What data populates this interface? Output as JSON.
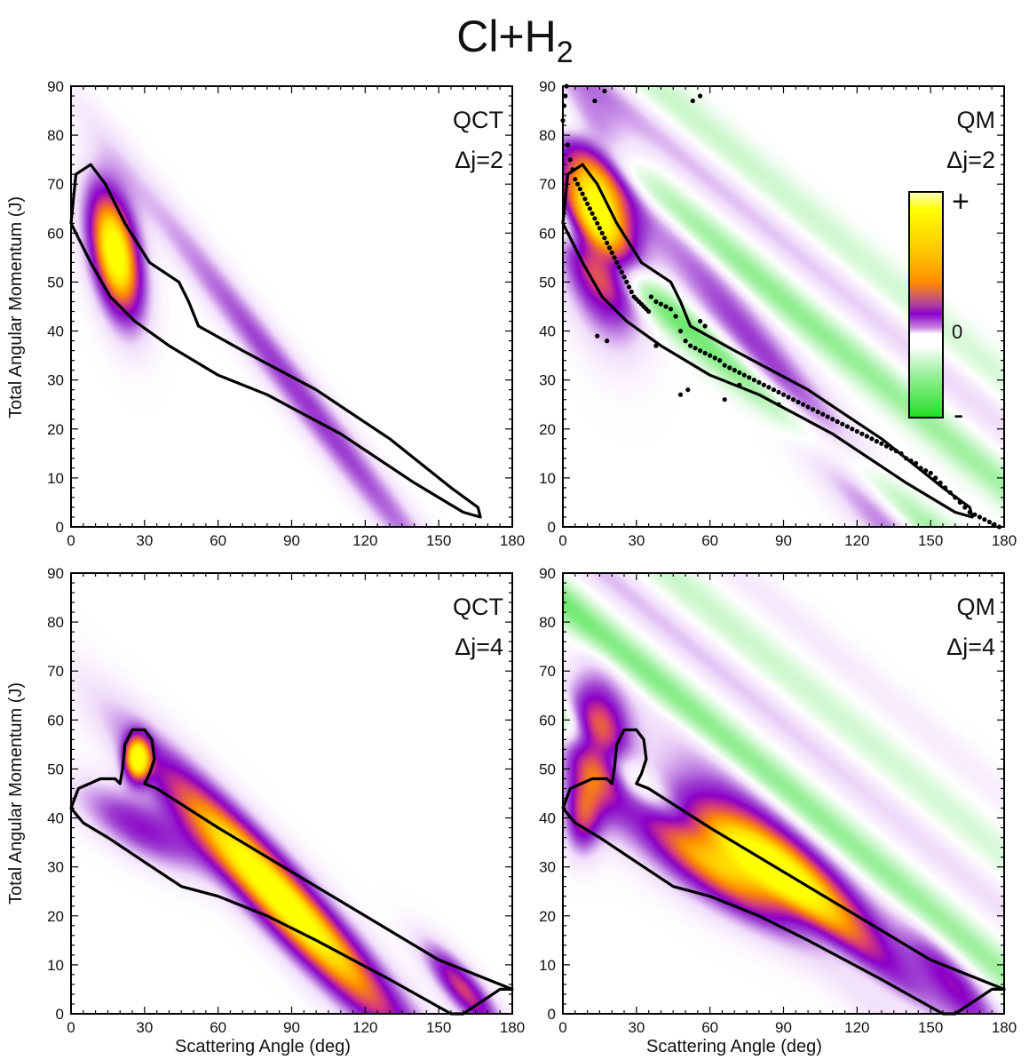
{
  "figure": {
    "title_main": "Cl+H",
    "title_sub": "2",
    "ylabel": "Total Angular Momentum (J)",
    "xlabel": "Scattering Angle (deg)"
  },
  "colors": {
    "yellow": "#ffff00",
    "orange": "#ff8c00",
    "purple": "#8b00c8",
    "green": "#22dd22",
    "contour": "#000000"
  },
  "colorbar": {
    "plus": "+",
    "zero": "0",
    "minus": "-"
  },
  "chart_data": [
    {
      "type": "heatmap",
      "panel": "top-left",
      "method": "QCT",
      "delta_j": "Δj=2",
      "xlim": [
        0,
        180
      ],
      "ylim": [
        0,
        90
      ],
      "xticks": [
        0,
        30,
        60,
        90,
        120,
        150,
        180
      ],
      "yticks": [
        0,
        10,
        20,
        30,
        40,
        50,
        60,
        70,
        80,
        90
      ],
      "blobs": [
        {
          "x": 18,
          "y": 56,
          "sx": 10,
          "sy": 6,
          "angle_deg": -58,
          "amp": 1.0
        },
        {
          "x": 95,
          "y": 26,
          "sx": 60,
          "sy": 3.5,
          "angle_deg": -33,
          "amp": 0.3
        }
      ],
      "contour": [
        [
          0,
          62
        ],
        [
          2,
          72
        ],
        [
          8,
          74
        ],
        [
          14,
          70
        ],
        [
          22,
          62
        ],
        [
          32,
          54
        ],
        [
          44,
          50
        ],
        [
          48,
          46
        ],
        [
          52,
          41
        ],
        [
          70,
          36
        ],
        [
          100,
          28
        ],
        [
          130,
          18
        ],
        [
          155,
          8
        ],
        [
          166,
          4
        ],
        [
          167,
          2
        ],
        [
          160,
          3
        ],
        [
          140,
          9
        ],
        [
          110,
          19
        ],
        [
          80,
          27
        ],
        [
          60,
          31
        ],
        [
          40,
          37
        ],
        [
          26,
          42
        ],
        [
          16,
          47
        ],
        [
          8,
          54
        ],
        [
          2,
          60
        ],
        [
          0,
          62
        ]
      ]
    },
    {
      "type": "heatmap",
      "panel": "top-right",
      "method": "QM",
      "delta_j": "Δj=2",
      "xlim": [
        0,
        180
      ],
      "ylim": [
        0,
        90
      ],
      "xticks": [
        0,
        30,
        60,
        90,
        120,
        150,
        180
      ],
      "yticks": [
        0,
        10,
        20,
        30,
        40,
        50,
        60,
        70,
        80,
        90
      ],
      "blobs": [
        {
          "x": 14,
          "y": 62,
          "sx": 14,
          "sy": 9,
          "angle_deg": -55,
          "amp": 1.0
        },
        {
          "x": 95,
          "y": 26,
          "sx": 65,
          "sy": 5,
          "angle_deg": -33,
          "amp": 0.32
        }
      ],
      "bands": [
        {
          "offset": -10,
          "amp": -0.35
        },
        {
          "offset": 12,
          "amp": -0.28
        },
        {
          "offset": 24,
          "amp": 0.16
        },
        {
          "offset": 34,
          "amp": -0.12
        }
      ],
      "contour": [
        [
          0,
          62
        ],
        [
          2,
          72
        ],
        [
          8,
          74
        ],
        [
          14,
          70
        ],
        [
          22,
          62
        ],
        [
          32,
          54
        ],
        [
          44,
          50
        ],
        [
          48,
          46
        ],
        [
          52,
          41
        ],
        [
          70,
          36
        ],
        [
          100,
          28
        ],
        [
          130,
          18
        ],
        [
          155,
          8
        ],
        [
          166,
          4
        ],
        [
          167,
          2
        ],
        [
          160,
          3
        ],
        [
          140,
          9
        ],
        [
          110,
          19
        ],
        [
          80,
          27
        ],
        [
          60,
          31
        ],
        [
          40,
          37
        ],
        [
          26,
          42
        ],
        [
          16,
          47
        ],
        [
          8,
          54
        ],
        [
          2,
          60
        ],
        [
          0,
          62
        ]
      ],
      "scatter": [
        [
          0,
          83
        ],
        [
          0.5,
          86
        ],
        [
          1,
          88
        ],
        [
          1.5,
          90
        ],
        [
          2,
          78
        ],
        [
          3,
          75
        ],
        [
          4,
          73
        ],
        [
          5,
          71
        ],
        [
          6,
          70
        ],
        [
          7,
          69
        ],
        [
          8,
          68
        ],
        [
          9,
          67
        ],
        [
          10,
          66
        ],
        [
          11,
          65
        ],
        [
          12,
          64
        ],
        [
          13,
          63
        ],
        [
          14,
          62
        ],
        [
          15,
          61
        ],
        [
          16,
          60
        ],
        [
          17,
          59
        ],
        [
          18,
          58
        ],
        [
          19,
          57
        ],
        [
          20,
          56
        ],
        [
          21,
          55
        ],
        [
          22,
          54
        ],
        [
          23,
          53
        ],
        [
          24,
          52
        ],
        [
          25,
          51
        ],
        [
          26,
          50
        ],
        [
          27,
          49
        ],
        [
          28,
          48
        ],
        [
          29,
          47
        ],
        [
          30,
          46.5
        ],
        [
          31,
          46
        ],
        [
          32,
          45.5
        ],
        [
          33,
          45
        ],
        [
          34,
          44.5
        ],
        [
          35,
          44
        ],
        [
          36,
          47
        ],
        [
          38,
          46
        ],
        [
          40,
          45.5
        ],
        [
          42,
          45
        ],
        [
          44,
          44.5
        ],
        [
          46,
          43
        ],
        [
          48,
          40
        ],
        [
          50,
          38
        ],
        [
          52,
          37
        ],
        [
          54,
          36.5
        ],
        [
          56,
          36
        ],
        [
          58,
          35.5
        ],
        [
          60,
          35
        ],
        [
          62,
          34.5
        ],
        [
          64,
          34
        ],
        [
          66,
          33
        ],
        [
          68,
          32.5
        ],
        [
          70,
          32
        ],
        [
          72,
          31.5
        ],
        [
          74,
          31
        ],
        [
          76,
          30.5
        ],
        [
          78,
          30
        ],
        [
          80,
          29.5
        ],
        [
          82,
          29
        ],
        [
          84,
          28.5
        ],
        [
          86,
          28
        ],
        [
          88,
          27.5
        ],
        [
          90,
          27
        ],
        [
          92,
          26.5
        ],
        [
          94,
          26
        ],
        [
          96,
          25.5
        ],
        [
          98,
          25
        ],
        [
          100,
          24.5
        ],
        [
          102,
          24
        ],
        [
          104,
          23.5
        ],
        [
          106,
          23
        ],
        [
          108,
          22.5
        ],
        [
          110,
          22
        ],
        [
          112,
          21.5
        ],
        [
          114,
          21
        ],
        [
          116,
          20.5
        ],
        [
          118,
          20
        ],
        [
          120,
          19.5
        ],
        [
          122,
          19
        ],
        [
          124,
          18.5
        ],
        [
          126,
          18
        ],
        [
          128,
          17.5
        ],
        [
          130,
          17
        ],
        [
          132,
          16.5
        ],
        [
          134,
          16
        ],
        [
          136,
          15.5
        ],
        [
          138,
          15
        ],
        [
          140,
          14
        ],
        [
          142,
          13.5
        ],
        [
          144,
          13
        ],
        [
          146,
          12
        ],
        [
          148,
          11.5
        ],
        [
          150,
          11
        ],
        [
          152,
          10
        ],
        [
          154,
          9
        ],
        [
          156,
          8
        ],
        [
          158,
          7
        ],
        [
          160,
          6
        ],
        [
          162,
          5
        ],
        [
          164,
          4
        ],
        [
          166,
          3
        ],
        [
          168,
          2.5
        ],
        [
          170,
          2
        ],
        [
          172,
          1.5
        ],
        [
          174,
          1
        ],
        [
          176,
          0.5
        ],
        [
          178,
          0
        ],
        [
          14,
          39
        ],
        [
          18,
          38
        ],
        [
          38,
          37
        ],
        [
          48,
          27
        ],
        [
          51,
          28
        ],
        [
          56,
          42
        ],
        [
          58,
          41
        ],
        [
          66,
          26
        ],
        [
          72,
          29
        ],
        [
          88,
          25
        ],
        [
          13,
          87
        ],
        [
          17,
          89
        ],
        [
          53,
          87
        ],
        [
          56,
          88
        ]
      ]
    },
    {
      "type": "heatmap",
      "panel": "bottom-left",
      "method": "QCT",
      "delta_j": "Δj=4",
      "xlim": [
        0,
        180
      ],
      "ylim": [
        0,
        90
      ],
      "xticks": [
        0,
        30,
        60,
        90,
        120,
        150,
        180
      ],
      "yticks": [
        0,
        10,
        20,
        30,
        40,
        50,
        60,
        70,
        80,
        90
      ],
      "blobs": [
        {
          "x": 27,
          "y": 52,
          "sx": 3.5,
          "sy": 3,
          "angle_deg": 0,
          "amp": 0.85
        },
        {
          "x": 85,
          "y": 24,
          "sx": 40,
          "sy": 5,
          "angle_deg": -28,
          "amp": 1.0
        },
        {
          "x": 160,
          "y": 5,
          "sx": 12,
          "sy": 3,
          "angle_deg": -28,
          "amp": 0.5
        },
        {
          "x": 28,
          "y": 38,
          "sx": 18,
          "sy": 4,
          "angle_deg": -15,
          "amp": 0.35
        }
      ],
      "contour": [
        [
          0,
          42
        ],
        [
          3,
          46
        ],
        [
          12,
          48
        ],
        [
          18,
          48
        ],
        [
          20,
          47
        ],
        [
          21,
          50
        ],
        [
          22,
          55
        ],
        [
          25,
          58
        ],
        [
          30,
          58
        ],
        [
          33,
          56
        ],
        [
          34,
          52
        ],
        [
          32,
          49
        ],
        [
          30,
          47
        ],
        [
          35,
          46
        ],
        [
          60,
          38
        ],
        [
          90,
          29
        ],
        [
          120,
          20
        ],
        [
          150,
          11
        ],
        [
          180,
          5
        ],
        [
          175,
          5
        ],
        [
          160,
          0
        ],
        [
          155,
          0
        ],
        [
          130,
          7
        ],
        [
          100,
          15
        ],
        [
          80,
          20
        ],
        [
          60,
          24
        ],
        [
          45,
          26
        ],
        [
          30,
          31
        ],
        [
          15,
          36
        ],
        [
          5,
          39
        ],
        [
          0,
          42
        ]
      ]
    },
    {
      "type": "heatmap",
      "panel": "bottom-right",
      "method": "QM",
      "delta_j": "Δj=4",
      "xlim": [
        0,
        180
      ],
      "ylim": [
        0,
        90
      ],
      "xticks": [
        0,
        30,
        60,
        90,
        120,
        150,
        180
      ],
      "yticks": [
        0,
        10,
        20,
        30,
        40,
        50,
        60,
        70,
        80,
        90
      ],
      "blobs": [
        {
          "x": 14,
          "y": 55,
          "sx": 9,
          "sy": 8,
          "angle_deg": -40,
          "amp": 0.7
        },
        {
          "x": 70,
          "y": 31,
          "sx": 28,
          "sy": 6,
          "angle_deg": -15,
          "amp": 1.0
        },
        {
          "x": 110,
          "y": 20,
          "sx": 45,
          "sy": 6,
          "angle_deg": -28,
          "amp": 0.45
        },
        {
          "x": 160,
          "y": 6,
          "sx": 15,
          "sy": 3.5,
          "angle_deg": -28,
          "amp": 0.35
        },
        {
          "x": 8,
          "y": 40,
          "sx": 5,
          "sy": 5,
          "angle_deg": 0,
          "amp": 0.4
        }
      ],
      "bands": [
        {
          "offset": -12,
          "amp": -0.3
        },
        {
          "offset": 12,
          "amp": -0.3
        },
        {
          "offset": 25,
          "amp": 0.15
        },
        {
          "offset": 36,
          "amp": -0.12
        },
        {
          "offset": 48,
          "amp": 0.08
        }
      ],
      "contour": [
        [
          0,
          42
        ],
        [
          3,
          46
        ],
        [
          12,
          48
        ],
        [
          18,
          48
        ],
        [
          20,
          47
        ],
        [
          21,
          50
        ],
        [
          22,
          55
        ],
        [
          25,
          58
        ],
        [
          30,
          58
        ],
        [
          33,
          56
        ],
        [
          34,
          52
        ],
        [
          32,
          49
        ],
        [
          30,
          47
        ],
        [
          35,
          46
        ],
        [
          60,
          38
        ],
        [
          90,
          29
        ],
        [
          120,
          20
        ],
        [
          150,
          11
        ],
        [
          180,
          5
        ],
        [
          175,
          5
        ],
        [
          160,
          0
        ],
        [
          155,
          0
        ],
        [
          130,
          7
        ],
        [
          100,
          15
        ],
        [
          80,
          20
        ],
        [
          60,
          24
        ],
        [
          45,
          26
        ],
        [
          30,
          31
        ],
        [
          15,
          36
        ],
        [
          5,
          39
        ],
        [
          0,
          42
        ]
      ]
    }
  ]
}
